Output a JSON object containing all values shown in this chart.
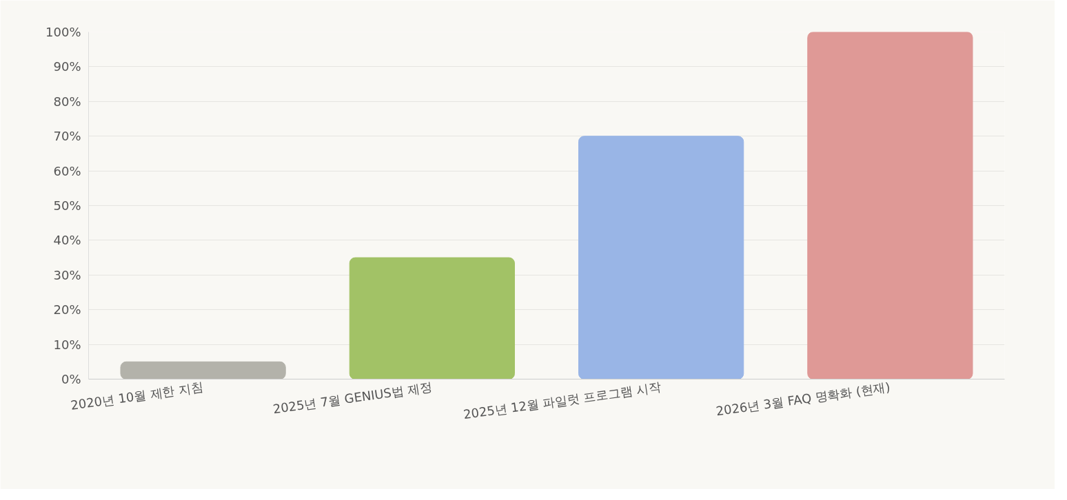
{
  "chart_data": {
    "type": "bar",
    "categories": [
      "2020년 10월 제한 지침",
      "2025년 7월 GENIUS법 제정",
      "2025년 12월 파일럿 프로그램 시작",
      "2026년 3월 FAQ 명확화 (현재)"
    ],
    "values": [
      5,
      35,
      70,
      100
    ],
    "colors": [
      "#b3b2aa",
      "#a2c266",
      "#99b5e6",
      "#df9996"
    ],
    "ylim": [
      0,
      100
    ],
    "yticks": [
      {
        "value": 0,
        "label": "0%"
      },
      {
        "value": 10,
        "label": "10%"
      },
      {
        "value": 20,
        "label": "20%"
      },
      {
        "value": 30,
        "label": "30%"
      },
      {
        "value": 40,
        "label": "40%"
      },
      {
        "value": 50,
        "label": "50%"
      },
      {
        "value": 60,
        "label": "60%"
      },
      {
        "value": 70,
        "label": "70%"
      },
      {
        "value": 80,
        "label": "80%"
      },
      {
        "value": 90,
        "label": "90%"
      },
      {
        "value": 100,
        "label": "100%"
      }
    ],
    "grid": "y"
  }
}
